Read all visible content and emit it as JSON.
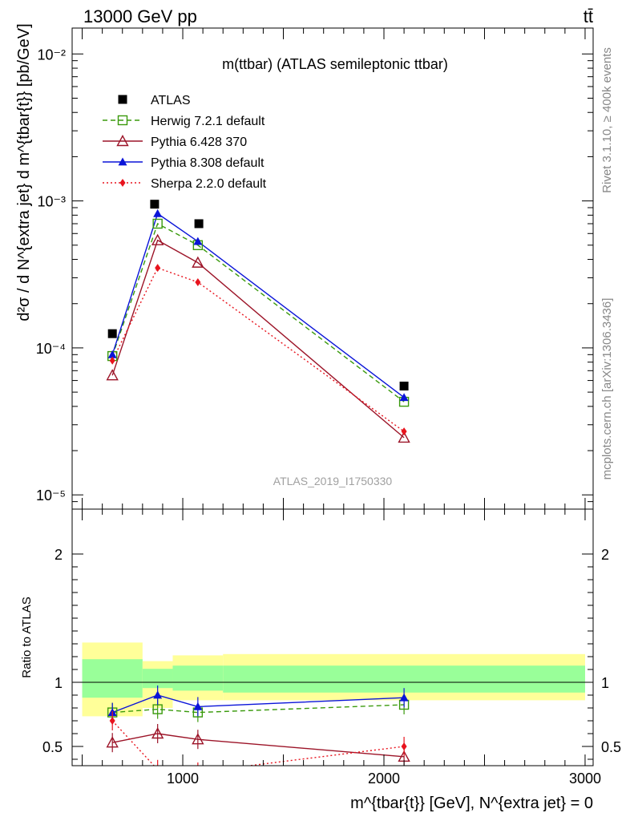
{
  "header": {
    "energy_label": "13000 GeV pp",
    "process_label": "tt̄"
  },
  "side_labels": {
    "rivet": "Rivet 3.1.10, ≥ 400k events",
    "mcplots": "mcplots.cern.ch [arXiv:1306.3436]"
  },
  "colors": {
    "atlas": "#000000",
    "herwig": "#3a9a0c",
    "pythia6": "#9c1428",
    "pythia8": "#0a14d8",
    "sherpa": "#e8141e",
    "band_outer": "#ffff99",
    "band_inner": "#99ff99"
  },
  "chart_data": [
    {
      "type": "line",
      "title": "m(ttbar) (ATLAS semileptonic ttbar)",
      "watermark": "ATLAS_2019_I1750330",
      "ylabel": "d²σ / d N^{extra jet} d m^{tbar{t}} [pb/GeV]",
      "yscale": "log",
      "ylim": [
        8e-06,
        0.015
      ],
      "xlim": [
        450,
        3040
      ],
      "ytick_labels": [
        "10⁻⁵",
        "10⁻⁴",
        "10⁻³",
        "10⁻²"
      ],
      "legend_position": "top-left",
      "series": [
        {
          "name": "ATLAS",
          "key": "atlas",
          "marker": "square",
          "x": [
            650,
            860,
            1080,
            2100
          ],
          "y": [
            0.000125,
            0.00095,
            0.0007,
            5.5e-05
          ]
        },
        {
          "name": "Herwig 7.2.1 default",
          "key": "herwig",
          "marker": "open-square",
          "line": "dashed",
          "x": [
            650,
            875,
            1075,
            2100
          ],
          "y": [
            8.8e-05,
            0.0007,
            0.0005,
            4.3e-05
          ]
        },
        {
          "name": "Pythia 6.428 370",
          "key": "pythia6",
          "marker": "open-triangle",
          "line": "solid",
          "x": [
            650,
            875,
            1075,
            2100
          ],
          "y": [
            6.5e-05,
            0.00054,
            0.00038,
            2.45e-05
          ]
        },
        {
          "name": "Pythia 8.308 default",
          "key": "pythia8",
          "marker": "triangle",
          "line": "solid",
          "x": [
            650,
            875,
            1075,
            2100
          ],
          "y": [
            9e-05,
            0.00082,
            0.00053,
            4.6e-05
          ]
        },
        {
          "name": "Sherpa 2.2.0 default",
          "key": "sherpa",
          "marker": "diamond",
          "line": "dotted",
          "x": [
            650,
            875,
            1075,
            2100
          ],
          "y": [
            8.2e-05,
            0.00035,
            0.00028,
            2.7e-05
          ]
        }
      ]
    },
    {
      "type": "line",
      "ylabel": "Ratio to ATLAS",
      "xlabel": "m^{tbar{t}} [GeV], N^{extra jet} = 0",
      "ylim": [
        0.35,
        2.35
      ],
      "xlim": [
        450,
        3040
      ],
      "xtick_labels": [
        "1000",
        "2000",
        "3000"
      ],
      "ytick_labels": [
        "0.5",
        "1",
        "2"
      ],
      "reference_line": 1,
      "uncertainty_bands": {
        "edges": [
          500,
          800,
          950,
          1200,
          3000
        ],
        "outer": [
          [
            0.735,
            1.31
          ],
          [
            0.8,
            1.165
          ],
          [
            0.86,
            1.21
          ],
          [
            0.86,
            1.22
          ]
        ],
        "inner": [
          [
            0.88,
            1.18
          ],
          [
            0.955,
            1.105
          ],
          [
            0.935,
            1.13
          ],
          [
            0.92,
            1.13
          ]
        ]
      },
      "series": [
        {
          "name": "Herwig 7.2.1 default",
          "key": "herwig",
          "marker": "open-square",
          "line": "dashed",
          "x": [
            650,
            875,
            1075,
            2100
          ],
          "y": [
            0.765,
            0.79,
            0.765,
            0.825
          ]
        },
        {
          "name": "Pythia 6.428 370",
          "key": "pythia6",
          "marker": "open-triangle",
          "line": "solid",
          "x": [
            650,
            875,
            1075,
            2100
          ],
          "y": [
            0.53,
            0.6,
            0.555,
            0.42
          ]
        },
        {
          "name": "Pythia 8.308 default",
          "key": "pythia8",
          "marker": "triangle",
          "line": "solid",
          "x": [
            650,
            875,
            1075,
            2100
          ],
          "y": [
            0.765,
            0.9,
            0.81,
            0.88
          ]
        },
        {
          "name": "Sherpa 2.2.0 default",
          "key": "sherpa",
          "marker": "diamond",
          "line": "dotted",
          "x": [
            650,
            875,
            1075,
            2100
          ],
          "y": [
            0.7,
            0.32,
            0.3,
            0.5
          ]
        }
      ]
    }
  ]
}
